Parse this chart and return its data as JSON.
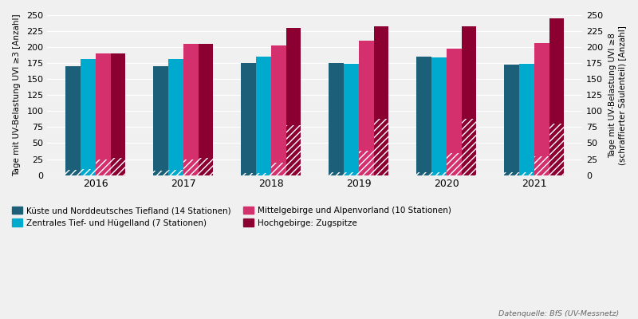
{
  "years": [
    "2016",
    "2017",
    "2018",
    "2019",
    "2020",
    "2021"
  ],
  "uv3": {
    "kuste": [
      170,
      170,
      175,
      175,
      185,
      173
    ],
    "zentral": [
      181,
      181,
      185,
      174,
      184,
      174
    ],
    "mittel": [
      190,
      205,
      203,
      210,
      198,
      207
    ],
    "zugspitze": [
      190,
      205,
      230,
      232,
      232,
      245
    ]
  },
  "uv8": {
    "kuste": [
      8,
      7,
      3,
      5,
      5,
      4
    ],
    "zentral": [
      10,
      8,
      3,
      5,
      5,
      4
    ],
    "mittel": [
      25,
      25,
      20,
      38,
      35,
      30
    ],
    "zugspitze": [
      27,
      27,
      78,
      88,
      88,
      80
    ]
  },
  "colors": {
    "kuste": "#1b5f78",
    "zentral": "#00aace",
    "mittel": "#d4306e",
    "zugspitze": "#8b0030"
  },
  "legend_labels_row1": [
    "Küste und Norddeutsches Tiefland (14 Stationen)",
    "Zentrales Tief- und Hügelland (7 Stationen)"
  ],
  "legend_labels_row2": [
    "Mittelgebirge und Alpenvorland (10 Stationen)",
    "Hochgebirge: Zugspitze"
  ],
  "ylabel_left": "Tage mit UV-Belastung UVI ≥3 [Anzahl]",
  "ylabel_right": "Tage mit UV-Belastung UVI ≥8\n(schraffierter Säulenteil) [Anzahl]",
  "ylim": [
    0,
    250
  ],
  "yticks": [
    0,
    25,
    50,
    75,
    100,
    125,
    150,
    175,
    200,
    225,
    250
  ],
  "source": "Datenquelle: BfS (UV-Messnetz)",
  "background": "#f0f0f0",
  "bar_width": 0.17
}
